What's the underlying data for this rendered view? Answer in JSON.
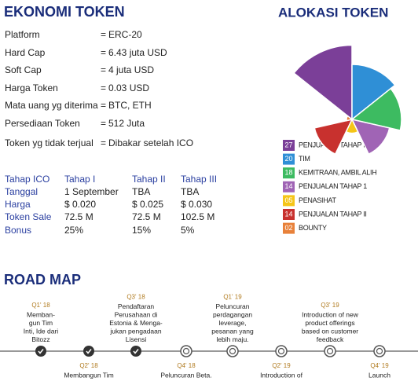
{
  "economy": {
    "title": "EKONOMI TOKEN",
    "separator": "=",
    "rows": [
      {
        "key": "Platform",
        "value": "ERC-20"
      },
      {
        "key": "Hard Cap",
        "value": "6.43 juta USD"
      },
      {
        "key": "Soft Cap",
        "value": "4 juta USD"
      },
      {
        "key": "Harga Token",
        "value": "0.03 USD"
      },
      {
        "key": "Mata uang yg diterima",
        "value": "BTC, ETH"
      },
      {
        "key": "Persediaan Token",
        "value": "512 Juta"
      },
      {
        "key": "Token yg tidak terjual",
        "value": "Dibakar setelah ICO"
      }
    ]
  },
  "table": {
    "header": [
      "Tahap ICO",
      "Tahap I",
      "Tahap II",
      "Tahap III"
    ],
    "rows": [
      [
        "Tanggal",
        "1 September",
        "TBA",
        "TBA"
      ],
      [
        "Harga",
        "$ 0.020",
        "$ 0.025",
        "$ 0.030"
      ],
      [
        "Token Sale",
        "72.5 M",
        "72.5 M",
        "102.5 M"
      ],
      [
        "Bonus",
        "25%",
        "15%",
        "5%"
      ]
    ]
  },
  "allocation": {
    "type": "rose",
    "title": "ALOKASI TOKEN",
    "categories": [
      "PENJUALAN TAHAP III",
      "TIM",
      "KEMITRAAN, AMBIL ALIH",
      "PENJUALAN TAHAP 1",
      "PENASIHAT",
      "PENJUALAN TAHAP II",
      "BOUNTY"
    ],
    "values": [
      27,
      20,
      18,
      14,
      5,
      14,
      2
    ],
    "value_labels": [
      "27",
      "20",
      "18",
      "14",
      "05",
      "14",
      "02"
    ],
    "colors": [
      "#7b3f98",
      "#2f8fd6",
      "#3dbb61",
      "#a064b5",
      "#f5c518",
      "#c8312e",
      "#e8813a"
    ]
  },
  "roadmap": {
    "title": "ROAD MAP",
    "milestones": [
      {
        "date": "Q1' 18",
        "lines": [
          "Memban-",
          "gun Tim",
          "Inti, Ide dari",
          "Bitozz"
        ]
      },
      {
        "date": "Q2' 18",
        "lines": [
          "Membangun Tim"
        ]
      },
      {
        "date": "Q3' 18",
        "lines": [
          "Pendaftaran",
          "Perusahaan di",
          "Estonia & Menga-",
          "jukan pengadaan",
          "Lisensi"
        ]
      },
      {
        "date": "Q4' 18",
        "lines": [
          "Peluncuran Beta."
        ]
      },
      {
        "date": "Q1' 19",
        "lines": [
          "Peluncuran",
          "perdagangan",
          "leverage,",
          "pesanan yang",
          "lebih maju."
        ]
      },
      {
        "date": "Q2' 19",
        "lines": [
          "Introduction of"
        ]
      },
      {
        "date": "Q3' 19",
        "lines": [
          "Introduction of new",
          "product offerings",
          "based on customer",
          "feedback"
        ]
      },
      {
        "date": "Q4' 19",
        "lines": [
          "Launch"
        ]
      }
    ]
  }
}
